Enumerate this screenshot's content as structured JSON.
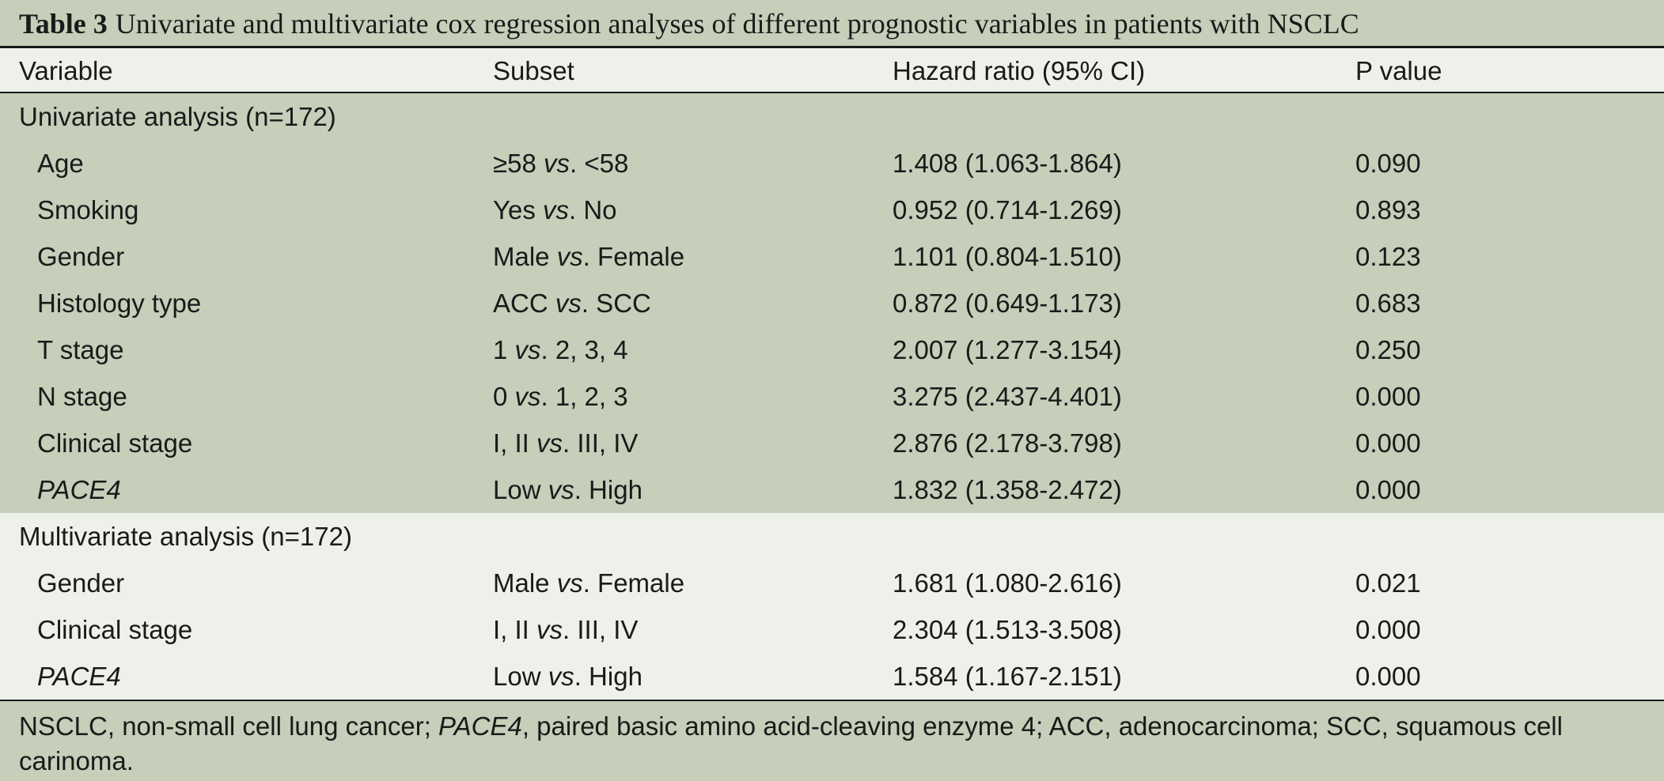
{
  "title": {
    "label": "Table 3",
    "text": "Univariate and multivariate cox regression analyses of different prognostic variables in patients with NSCLC"
  },
  "headers": [
    "Variable",
    "Subset",
    "Hazard ratio (95% CI)",
    "P value"
  ],
  "univariate": {
    "label": "Univariate analysis (n=172)",
    "rows": [
      {
        "variable": "Age",
        "subset_a": "≥58 ",
        "vs": "vs",
        "subset_b": ". <58",
        "hr": "1.408 (1.063-1.864)",
        "p": "0.090"
      },
      {
        "variable": "Smoking",
        "subset_a": "Yes ",
        "vs": "vs",
        "subset_b": ". No",
        "hr": "0.952 (0.714-1.269)",
        "p": "0.893"
      },
      {
        "variable": "Gender",
        "subset_a": "Male ",
        "vs": "vs",
        "subset_b": ". Female",
        "hr": "1.101 (0.804-1.510)",
        "p": "0.123"
      },
      {
        "variable": "Histology type",
        "subset_a": "ACC ",
        "vs": "vs",
        "subset_b": ". SCC",
        "hr": "0.872 (0.649-1.173)",
        "p": "0.683"
      },
      {
        "variable": "T stage",
        "subset_a": "1 ",
        "vs": "vs",
        "subset_b": ". 2, 3, 4",
        "hr": "2.007 (1.277-3.154)",
        "p": "0.250"
      },
      {
        "variable": "N stage",
        "subset_a": "0 ",
        "vs": "vs",
        "subset_b": ". 1, 2, 3",
        "hr": "3.275 (2.437-4.401)",
        "p": "0.000"
      },
      {
        "variable": "Clinical stage",
        "subset_a": "I, II ",
        "vs": "vs",
        "subset_b": ". III, IV",
        "hr": "2.876 (2.178-3.798)",
        "p": "0.000"
      },
      {
        "variable": "PACE4",
        "subset_a": "Low ",
        "vs": "vs",
        "subset_b": ". High",
        "hr": "1.832 (1.358-2.472)",
        "p": "0.000"
      }
    ]
  },
  "multivariate": {
    "label": "Multivariate analysis (n=172)",
    "rows": [
      {
        "variable": "Gender",
        "subset_a": "Male ",
        "vs": "vs",
        "subset_b": ". Female",
        "hr": "1.681 (1.080-2.616)",
        "p": "0.021"
      },
      {
        "variable": "Clinical stage",
        "subset_a": "I, II ",
        "vs": "vs",
        "subset_b": ". III, IV",
        "hr": "2.304 (1.513-3.508)",
        "p": "0.000"
      },
      {
        "variable": "PACE4",
        "subset_a": "Low ",
        "vs": "vs",
        "subset_b": ". High",
        "hr": "1.584 (1.167-2.151)",
        "p": "0.000"
      }
    ]
  },
  "footnote": {
    "part1": "NSCLC, non-small cell lung cancer; ",
    "italic": "PACE4",
    "part2": ", paired basic amino acid-cleaving enzyme 4; ACC, adenocarcinoma; SCC, squamous cell carinoma."
  }
}
